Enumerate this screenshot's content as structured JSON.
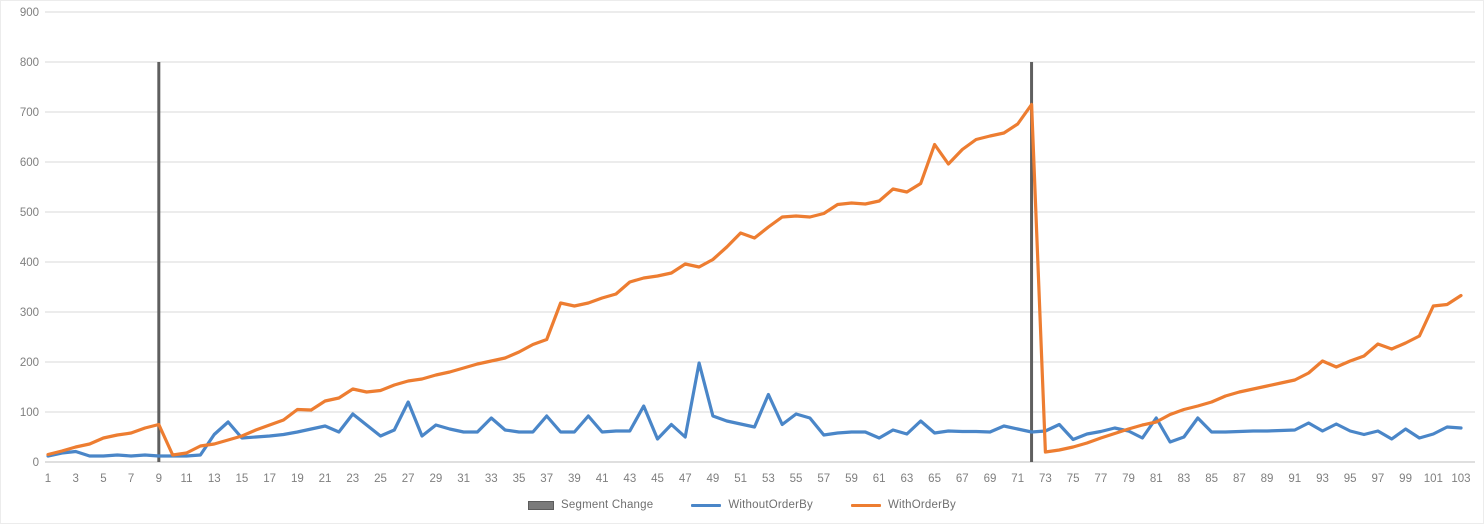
{
  "chart_data": {
    "type": "line",
    "title": "",
    "xlabel": "",
    "ylabel": "",
    "ylim": [
      0,
      900
    ],
    "y_ticks": [
      0,
      100,
      200,
      300,
      400,
      500,
      600,
      700,
      800,
      900
    ],
    "x_tick_labels": [
      1,
      3,
      5,
      7,
      9,
      11,
      13,
      15,
      17,
      19,
      21,
      23,
      25,
      27,
      29,
      31,
      33,
      35,
      37,
      39,
      41,
      43,
      45,
      47,
      49,
      51,
      53,
      55,
      57,
      59,
      61,
      63,
      65,
      67,
      69,
      71,
      73,
      75,
      77,
      79,
      81,
      83,
      85,
      87,
      89,
      91,
      93,
      95,
      97,
      99,
      101,
      103
    ],
    "x_range": [
      1,
      103
    ],
    "grid": true,
    "legend_position": "bottom",
    "series": [
      {
        "name": "WithoutOrderBy",
        "color": "#4A86C8",
        "values": [
          12,
          18,
          21,
          12,
          12,
          14,
          12,
          14,
          12,
          12,
          12,
          14,
          55,
          80,
          48,
          50,
          52,
          55,
          60,
          66,
          72,
          60,
          96,
          74,
          52,
          64,
          120,
          52,
          74,
          66,
          60,
          60,
          88,
          64,
          60,
          60,
          92,
          60,
          60,
          92,
          60,
          62,
          62,
          112,
          46,
          75,
          50,
          198,
          92,
          82,
          76,
          70,
          135,
          75,
          96,
          88,
          54,
          58,
          60,
          60,
          48,
          64,
          56,
          82,
          58,
          62,
          61,
          61,
          60,
          72,
          66,
          60,
          62,
          75,
          45,
          56,
          61,
          68,
          62,
          48,
          88,
          40,
          50,
          88,
          60,
          60,
          61,
          62,
          62,
          63,
          64,
          78,
          62,
          76,
          62,
          55,
          62,
          46,
          66,
          48,
          56,
          70,
          68
        ]
      },
      {
        "name": "WithOrderBy",
        "color": "#ED7D31",
        "values": [
          15,
          22,
          30,
          36,
          48,
          54,
          58,
          68,
          75,
          14,
          18,
          32,
          36,
          44,
          52,
          64,
          74,
          84,
          105,
          104,
          122,
          128,
          146,
          140,
          143,
          154,
          162,
          166,
          174,
          180,
          188,
          196,
          202,
          208,
          220,
          235,
          245,
          318,
          312,
          318,
          328,
          336,
          360,
          368,
          372,
          378,
          396,
          390,
          405,
          430,
          458,
          448,
          470,
          490,
          492,
          490,
          497,
          515,
          518,
          516,
          522,
          546,
          540,
          557,
          635,
          596,
          625,
          645,
          652,
          658,
          676,
          715,
          20,
          24,
          30,
          38,
          48,
          57,
          66,
          74,
          80,
          95,
          105,
          112,
          120,
          132,
          140,
          146,
          152,
          158,
          164,
          178,
          202,
          190,
          202,
          212,
          236,
          226,
          238,
          252,
          312,
          315,
          333
        ]
      }
    ],
    "segment_changes": {
      "name": "Segment Change",
      "color": "#5f5f5f",
      "x_positions": [
        9,
        72
      ],
      "y_bottom": 0,
      "y_top": 800
    },
    "legend": {
      "items": [
        "Segment Change",
        "WithoutOrderBy",
        "WithOrderBy"
      ]
    }
  },
  "style_colors": {
    "gridline": "#d9d9d9",
    "axis_line": "#bfbfbf",
    "tick_label": "#7f7f7f",
    "legend_text": "#6f6f6f"
  }
}
